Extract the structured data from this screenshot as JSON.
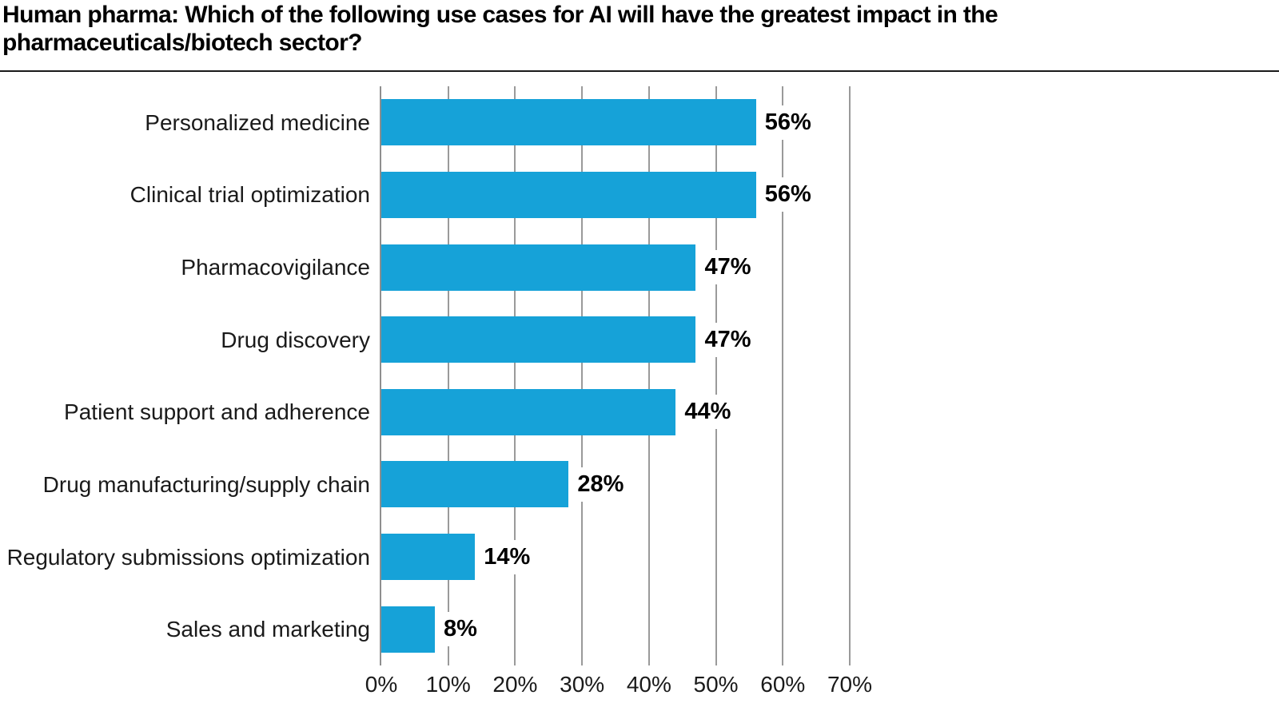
{
  "header": {
    "title_line1": "Human pharma: Which of the following use cases for AI will have the greatest impact in the",
    "title_line2": "pharmaceuticals/biotech sector?"
  },
  "chart_data": {
    "type": "bar",
    "orientation": "horizontal",
    "title": "Human pharma: Which of the following use cases for AI will have the greatest impact in the pharmaceuticals/biotech sector?",
    "categories": [
      "Personalized medicine",
      "Clinical trial optimization",
      "Pharmacovigilance",
      "Drug discovery",
      "Patient support and adherence",
      "Drug manufacturing/supply chain",
      "Regulatory submissions optimization",
      "Sales and marketing"
    ],
    "values": [
      56,
      56,
      47,
      47,
      44,
      28,
      14,
      8
    ],
    "value_labels": [
      "56%",
      "56%",
      "47%",
      "47%",
      "44%",
      "28%",
      "14%",
      "8%"
    ],
    "x_ticks": [
      "0%",
      "10%",
      "20%",
      "30%",
      "40%",
      "50%",
      "60%",
      "70%"
    ],
    "xlim": [
      0,
      70
    ],
    "xlabel": "",
    "ylabel": "",
    "grid": true,
    "legend": "none",
    "bar_color": "#16A2D8",
    "gridline_color": "#9a9a9a",
    "axis_line_color": "#8e8e8e",
    "value_label_color": "#000000",
    "category_label_color": "#1a1a1a",
    "title_color": "#000000"
  }
}
